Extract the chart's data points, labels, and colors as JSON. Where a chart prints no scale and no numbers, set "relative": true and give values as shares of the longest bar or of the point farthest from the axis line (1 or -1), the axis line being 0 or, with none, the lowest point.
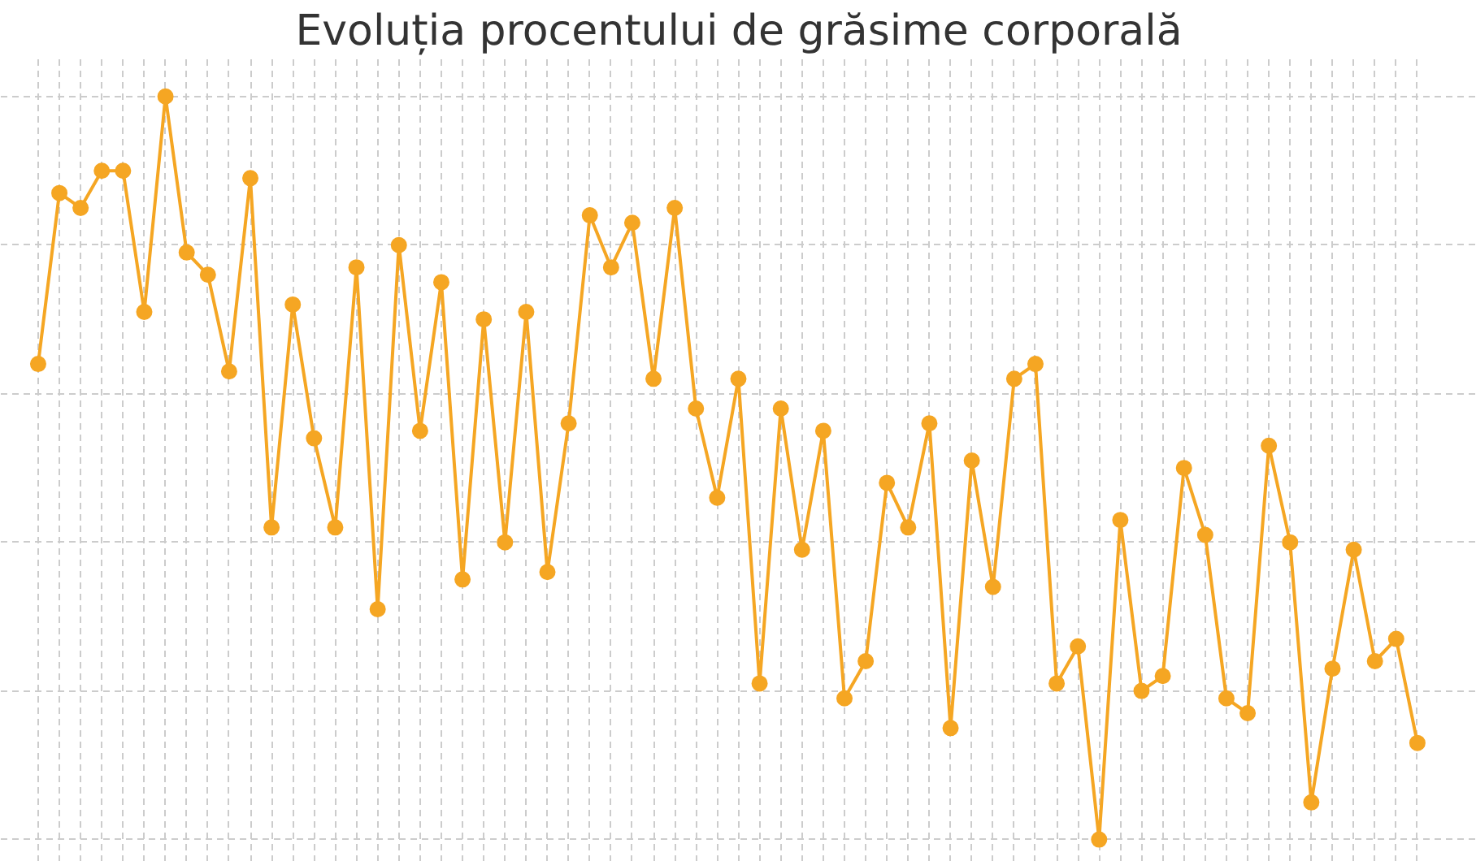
{
  "chart_data": {
    "type": "line",
    "title": "Evoluția procentului de grăsime corporală",
    "relative": true,
    "categories": [
      null,
      null,
      null,
      null,
      null,
      null,
      null,
      null,
      null,
      null,
      null,
      null,
      null,
      null,
      null,
      null,
      null,
      null,
      null,
      null,
      null,
      null,
      null,
      null,
      null,
      null,
      null,
      null,
      null,
      null,
      null,
      null,
      null,
      null,
      null,
      null,
      null,
      null,
      null,
      null,
      null,
      null,
      null,
      null,
      null,
      null,
      null,
      null,
      null,
      null,
      null,
      null,
      null,
      null,
      null,
      null,
      null,
      null,
      null,
      null,
      null,
      null,
      null,
      null,
      null,
      null
    ],
    "series": [
      {
        "color": "#f5a623",
        "values": [
          0.64,
          0.87,
          0.85,
          0.9,
          0.9,
          0.71,
          1,
          0.79,
          0.76,
          0.63,
          0.89,
          0.42,
          0.72,
          0.54,
          0.42,
          0.77,
          0.31,
          0.8,
          0.55,
          0.75,
          0.35,
          0.7,
          0.4,
          0.71,
          0.36,
          0.56,
          0.84,
          0.77,
          0.83,
          0.62,
          0.85,
          0.58,
          0.46,
          0.62,
          0.21,
          0.58,
          0.39,
          0.55,
          0.19,
          0.24,
          0.48,
          0.42,
          0.56,
          0.15,
          0.51,
          0.34,
          0.62,
          0.64,
          0.21,
          0.26,
          0,
          0.43,
          0.2,
          0.22,
          0.5,
          0.41,
          0.19,
          0.17,
          0.53,
          0.4,
          0.05,
          0.23,
          0.39,
          0.24,
          0.27,
          0.13
        ]
      }
    ],
    "grid": true,
    "marker": "circle",
    "line_style": "solid",
    "tick_labels": false
  }
}
